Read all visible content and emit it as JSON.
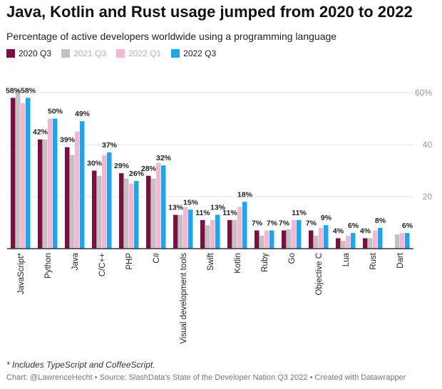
{
  "header": {
    "title": "Java, Kotlin and Rust usage jumped from 2020 to 2022",
    "subtitle": "Percentage of active developers worldwide using a programming language"
  },
  "footer": {
    "footnote": "* Includes TypeScript and CoffeeScript.",
    "credit": "Chart: @LawrenceHecht • Source: SlashData's State of the Developer Nation Q3 2022 • Created with Datawrapper"
  },
  "chart_data": {
    "type": "bar",
    "title": "Java, Kotlin and Rust usage jumped from 2020 to 2022",
    "subtitle": "Percentage of active developers worldwide using a programming language",
    "ylim": [
      0,
      60
    ],
    "yticks": [
      20,
      40,
      60
    ],
    "ytick_labels": [
      "20",
      "40",
      "60%"
    ],
    "grid": true,
    "legend_position": "top-left",
    "categories": [
      "JavaScript*",
      "Python",
      "Java",
      "C/C++",
      "PHP",
      "C#",
      "Visual development tools",
      "Swift",
      "Kotlin",
      "Ruby",
      "Go",
      "Objective C",
      "Lua",
      "Rust",
      "Dart"
    ],
    "series": [
      {
        "name": "2020 Q3",
        "color": "#7c0f3e",
        "legend_muted": false,
        "values": [
          58,
          42,
          39,
          30,
          29,
          28,
          13,
          11,
          11,
          7,
          7,
          7,
          4,
          4,
          null
        ]
      },
      {
        "name": "2021 Q3",
        "color": "#c2c2c6",
        "legend_muted": true,
        "values": [
          61,
          42,
          36,
          28,
          27,
          27,
          13,
          9,
          11,
          5,
          7.5,
          5,
          3,
          4,
          5.5
        ]
      },
      {
        "name": "2022 Q1",
        "color": "#f7b6d0",
        "legend_muted": true,
        "values": [
          56,
          50,
          45,
          36,
          25,
          33,
          16,
          11,
          16,
          7,
          11,
          8,
          5,
          7,
          6
        ]
      },
      {
        "name": "2022 Q3",
        "color": "#1aa7ec",
        "legend_muted": false,
        "values": [
          58,
          50,
          49,
          37,
          26,
          32,
          15,
          13,
          18,
          7,
          11,
          9,
          6,
          8,
          6
        ]
      }
    ],
    "data_labels": [
      "58%",
      "42%",
      "39%",
      "30%",
      "29%",
      "28%",
      "13%",
      "11%",
      "11%",
      "7%",
      "7%",
      "7%",
      "4%",
      "4%",
      null
    ],
    "data_labels_last": [
      "58%",
      "50%",
      "49%",
      "37%",
      "26%",
      "32%",
      "15%",
      "13%",
      "18%",
      "7%",
      "11%",
      "9%",
      "6%",
      "8%",
      "6%"
    ]
  }
}
